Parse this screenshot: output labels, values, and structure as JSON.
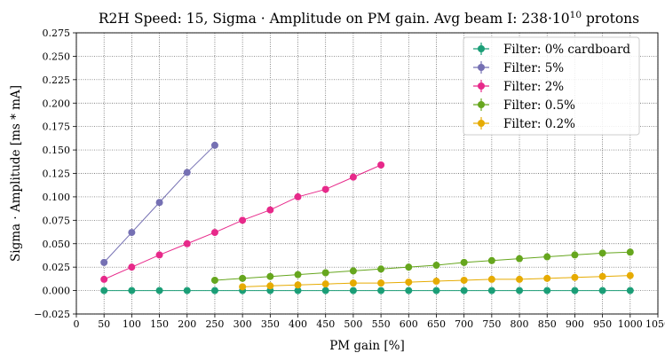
{
  "chart_data": {
    "type": "scatter",
    "title": {
      "prefix": "R2H Speed: 15, Sigma · Amplitude on PM gain. Avg beam I: 238·10",
      "exponent": "10",
      "suffix": " protons"
    },
    "xlabel": "PM gain [%]",
    "ylabel": "Sigma · Amplitude [ms * mA]",
    "xlim": [
      0,
      1050
    ],
    "ylim": [
      -0.025,
      0.275
    ],
    "xticks": [
      0,
      50,
      100,
      150,
      200,
      250,
      300,
      350,
      400,
      450,
      500,
      550,
      600,
      650,
      700,
      750,
      800,
      850,
      900,
      950,
      1000,
      1050
    ],
    "yticks": [
      -0.025,
      0.0,
      0.025,
      0.05,
      0.075,
      0.1,
      0.125,
      0.15,
      0.175,
      0.2,
      0.225,
      0.25,
      0.275
    ],
    "xtick_labels": [
      "0",
      "50",
      "100",
      "150",
      "200",
      "250",
      "300",
      "350",
      "400",
      "450",
      "500",
      "550",
      "600",
      "650",
      "700",
      "750",
      "800",
      "850",
      "900",
      "950",
      "1000",
      "1050"
    ],
    "ytick_labels": [
      "−0.025",
      "0.000",
      "0.025",
      "0.050",
      "0.075",
      "0.100",
      "0.125",
      "0.150",
      "0.175",
      "0.200",
      "0.225",
      "0.250",
      "0.275"
    ],
    "grid": true,
    "grid_style": "dotted",
    "legend_position": "top-right",
    "series": [
      {
        "name": "Filter: 0% cardboard",
        "color": "#1b9e77",
        "x": [
          50,
          100,
          150,
          200,
          250,
          300,
          350,
          400,
          450,
          500,
          550,
          600,
          650,
          700,
          750,
          800,
          850,
          900,
          950,
          1000
        ],
        "y": [
          0.0,
          0.0,
          0.0,
          0.0,
          0.0,
          0.0,
          0.0,
          0.0,
          0.0,
          0.0,
          0.0,
          0.0,
          0.0,
          0.0,
          0.0,
          0.0,
          0.0,
          0.0,
          0.0,
          0.0
        ]
      },
      {
        "name": "Filter: 5%",
        "color": "#7570b3",
        "x": [
          50,
          100,
          150,
          200,
          250
        ],
        "y": [
          0.03,
          0.062,
          0.094,
          0.126,
          0.155
        ]
      },
      {
        "name": "Filter: 2%",
        "color": "#e7298a",
        "x": [
          50,
          100,
          150,
          200,
          250,
          300,
          350,
          400,
          450,
          500,
          550
        ],
        "y": [
          0.012,
          0.025,
          0.038,
          0.05,
          0.062,
          0.075,
          0.086,
          0.1,
          0.108,
          0.121,
          0.134
        ]
      },
      {
        "name": "Filter: 0.5%",
        "color": "#66a61e",
        "x": [
          250,
          300,
          350,
          400,
          450,
          500,
          550,
          600,
          650,
          700,
          750,
          800,
          850,
          900,
          950,
          1000
        ],
        "y": [
          0.011,
          0.013,
          0.015,
          0.017,
          0.019,
          0.021,
          0.023,
          0.025,
          0.027,
          0.03,
          0.032,
          0.034,
          0.036,
          0.038,
          0.04,
          0.041
        ]
      },
      {
        "name": "Filter: 0.2%",
        "color": "#e6ab02",
        "x": [
          300,
          350,
          400,
          450,
          500,
          550,
          600,
          650,
          700,
          750,
          800,
          850,
          900,
          950,
          1000
        ],
        "y": [
          0.004,
          0.005,
          0.006,
          0.007,
          0.008,
          0.008,
          0.009,
          0.01,
          0.011,
          0.012,
          0.012,
          0.013,
          0.014,
          0.015,
          0.016
        ]
      }
    ]
  }
}
